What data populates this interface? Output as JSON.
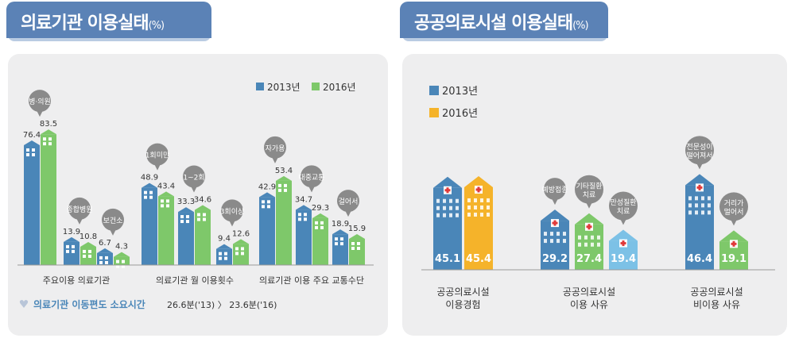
{
  "left": {
    "title": "의료기관 이용실태",
    "title_unit": "(%)",
    "legend": [
      "2013년",
      "2016년"
    ],
    "footnote_label": "의료기관 이동편도 소요시간",
    "footnote_value": "26.6분('13) 〉 23.6분('16)"
  },
  "right": {
    "title": "공공의료시설 이용실태",
    "title_unit": "(%)",
    "legend": [
      "2013년",
      "2016년"
    ]
  },
  "colors": {
    "y2013": "#4a86b8",
    "y2016": "#7ec86a",
    "y2016_right": "#f5b32a",
    "light_blue": "#7cc1e6",
    "tab": "#5b82b6",
    "bubble": "#8a8a8a"
  },
  "chart_data": [
    {
      "type": "bar",
      "title": "의료기관 이용실태",
      "unit": "%",
      "series_names": [
        "2013년",
        "2016년"
      ],
      "groups": [
        {
          "label": "주요이용 의료기관",
          "categories": [
            "병·의원",
            "종합병원",
            "보건소"
          ],
          "series": [
            {
              "name": "2013년",
              "values": [
                76.4,
                13.9,
                6.7
              ]
            },
            {
              "name": "2016년",
              "values": [
                83.5,
                10.8,
                4.3
              ]
            }
          ]
        },
        {
          "label": "의료기관 월 이용횟수",
          "categories": [
            "1회미만",
            "1~2회",
            "3회이상"
          ],
          "series": [
            {
              "name": "2013년",
              "values": [
                48.9,
                33.3,
                9.4
              ]
            },
            {
              "name": "2016년",
              "values": [
                43.4,
                34.6,
                12.6
              ]
            }
          ]
        },
        {
          "label": "의료기관 이용 주요 교통수단",
          "categories": [
            "자가용",
            "대중교통",
            "걸어서"
          ],
          "series": [
            {
              "name": "2013년",
              "values": [
                42.9,
                34.7,
                18.9
              ]
            },
            {
              "name": "2016년",
              "values": [
                53.4,
                29.3,
                15.9
              ]
            }
          ]
        }
      ]
    },
    {
      "type": "bar",
      "title": "공공의료시설 이용실태",
      "unit": "%",
      "groups": [
        {
          "label": "공공의료시설 이용경험",
          "bars": [
            {
              "value": 45.1,
              "series": "2013년"
            },
            {
              "value": 45.4,
              "series": "2016년"
            }
          ]
        },
        {
          "label": "공공의료시설 이용 사유",
          "bars": [
            {
              "value": 29.2,
              "category": "예방접종"
            },
            {
              "value": 27.4,
              "category": "기타질환 치료"
            },
            {
              "value": 19.4,
              "category": "만성질환 치료"
            }
          ]
        },
        {
          "label": "공공의료시설 비이용 사유",
          "bars": [
            {
              "value": 46.4,
              "category": "전문성이 떨어져서"
            },
            {
              "value": 19.1,
              "category": "거리가 멀어서"
            }
          ]
        }
      ]
    }
  ]
}
